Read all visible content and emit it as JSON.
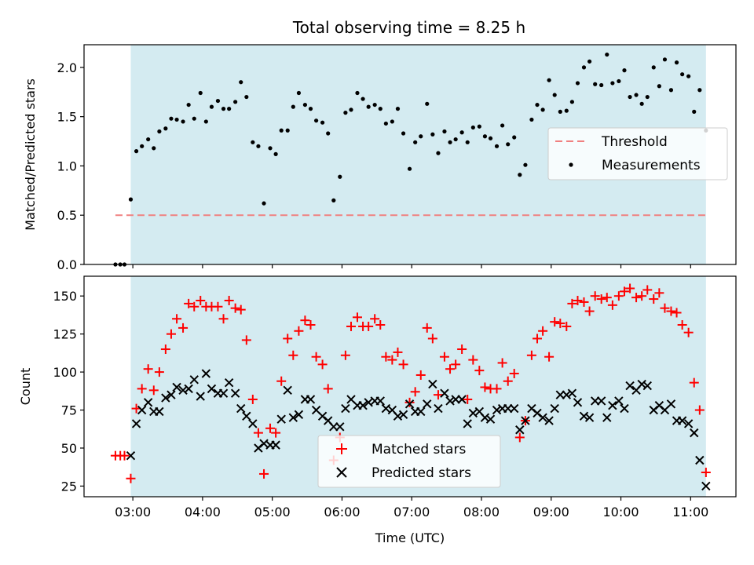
{
  "figure": {
    "title": "Total observing time = 8.25 h"
  },
  "chart_data": [
    {
      "type": "scatter",
      "panel": "top",
      "title": "Total observing time = 8.25 h",
      "xlabel": "",
      "ylabel": "Matched/Predicted stars",
      "xlim": [
        2.3,
        11.65
      ],
      "ylim": [
        0.0,
        2.23
      ],
      "yticks": [
        0.0,
        0.5,
        1.0,
        1.5,
        2.0
      ],
      "ytick_labels": [
        "0.0",
        "0.5",
        "1.0",
        "1.5",
        "2.0"
      ],
      "grid": false,
      "shaded_region": {
        "x0": 2.97,
        "x1": 11.22,
        "color": "#d4ebf1"
      },
      "threshold": {
        "name": "Threshold",
        "y": 0.5,
        "x0": 2.75,
        "x1": 11.22,
        "color": "#f08080",
        "style": "dashed"
      },
      "legend": {
        "position": "center-right",
        "entries": [
          "Threshold",
          "Measurements"
        ]
      },
      "series": [
        {
          "name": "Measurements",
          "color": "#000000",
          "marker": "dot",
          "x": [
            2.75,
            2.82,
            2.88,
            2.97,
            3.05,
            3.13,
            3.22,
            3.3,
            3.38,
            3.47,
            3.55,
            3.63,
            3.72,
            3.8,
            3.88,
            3.97,
            4.05,
            4.13,
            4.22,
            4.3,
            4.38,
            4.47,
            4.55,
            4.63,
            4.72,
            4.8,
            4.88,
            4.97,
            5.05,
            5.13,
            5.22,
            5.3,
            5.38,
            5.47,
            5.55,
            5.63,
            5.72,
            5.8,
            5.88,
            5.97,
            6.05,
            6.13,
            6.22,
            6.3,
            6.38,
            6.47,
            6.55,
            6.63,
            6.72,
            6.8,
            6.88,
            6.97,
            7.05,
            7.13,
            7.22,
            7.3,
            7.38,
            7.47,
            7.55,
            7.63,
            7.72,
            7.8,
            7.88,
            7.97,
            8.05,
            8.13,
            8.22,
            8.3,
            8.38,
            8.47,
            8.55,
            8.63,
            8.72,
            8.8,
            8.88,
            8.97,
            9.05,
            9.13,
            9.22,
            9.3,
            9.38,
            9.47,
            9.55,
            9.63,
            9.72,
            9.8,
            9.88,
            9.97,
            10.05,
            10.13,
            10.22,
            10.3,
            10.38,
            10.47,
            10.55,
            10.63,
            10.72,
            10.8,
            10.88,
            10.97,
            11.05,
            11.13,
            11.22
          ],
          "y": [
            0.0,
            0.0,
            0.0,
            0.66,
            1.15,
            1.2,
            1.27,
            1.18,
            1.35,
            1.38,
            1.48,
            1.47,
            1.45,
            1.62,
            1.48,
            1.74,
            1.45,
            1.6,
            1.66,
            1.58,
            1.58,
            1.65,
            1.85,
            1.7,
            1.24,
            1.2,
            0.62,
            1.18,
            1.12,
            1.36,
            1.36,
            1.6,
            1.74,
            1.62,
            1.58,
            1.46,
            1.44,
            1.33,
            0.65,
            0.89,
            1.54,
            1.57,
            1.74,
            1.68,
            1.6,
            1.62,
            1.58,
            1.43,
            1.45,
            1.58,
            1.33,
            0.97,
            1.24,
            1.3,
            1.63,
            1.32,
            1.13,
            1.35,
            1.24,
            1.27,
            1.34,
            1.24,
            1.39,
            1.4,
            1.3,
            1.28,
            1.2,
            1.41,
            1.22,
            1.29,
            0.91,
            1.01,
            1.47,
            1.62,
            1.57,
            1.87,
            1.72,
            1.55,
            1.56,
            1.65,
            1.84,
            2.0,
            2.06,
            1.83,
            1.82,
            2.13,
            1.84,
            1.86,
            1.97,
            1.7,
            1.72,
            1.63,
            1.7,
            2.0,
            1.81,
            2.08,
            1.77,
            2.05,
            1.93,
            1.91,
            1.55,
            1.77,
            1.36
          ]
        }
      ]
    },
    {
      "type": "scatter",
      "panel": "bottom",
      "xlabel": "Time (UTC)",
      "ylabel": "Count",
      "xlim": [
        2.3,
        11.65
      ],
      "ylim": [
        18,
        163
      ],
      "xticks": [
        3,
        4,
        5,
        6,
        7,
        8,
        9,
        10,
        11
      ],
      "xtick_labels": [
        "03:00",
        "04:00",
        "05:00",
        "06:00",
        "07:00",
        "08:00",
        "09:00",
        "10:00",
        "11:00"
      ],
      "yticks": [
        25,
        50,
        75,
        100,
        125,
        150
      ],
      "ytick_labels": [
        "25",
        "50",
        "75",
        "100",
        "125",
        "150"
      ],
      "grid": false,
      "shaded_region": {
        "x0": 2.97,
        "x1": 11.22,
        "color": "#d4ebf1"
      },
      "legend": {
        "position": "bottom-center",
        "entries": [
          "Matched stars",
          "Predicted stars"
        ]
      },
      "series": [
        {
          "name": "Matched stars",
          "color": "#ff0000",
          "marker": "plus",
          "x": [
            2.75,
            2.82,
            2.88,
            2.97,
            3.05,
            3.13,
            3.22,
            3.3,
            3.38,
            3.47,
            3.55,
            3.63,
            3.72,
            3.8,
            3.88,
            3.97,
            4.05,
            4.13,
            4.22,
            4.3,
            4.38,
            4.47,
            4.55,
            4.63,
            4.72,
            4.8,
            4.88,
            4.97,
            5.05,
            5.13,
            5.22,
            5.3,
            5.38,
            5.47,
            5.55,
            5.63,
            5.72,
            5.8,
            5.88,
            5.97,
            6.05,
            6.13,
            6.22,
            6.3,
            6.38,
            6.47,
            6.55,
            6.63,
            6.72,
            6.8,
            6.88,
            6.97,
            7.05,
            7.13,
            7.22,
            7.3,
            7.38,
            7.47,
            7.55,
            7.63,
            7.72,
            7.8,
            7.88,
            7.97,
            8.05,
            8.13,
            8.22,
            8.3,
            8.38,
            8.47,
            8.55,
            8.63,
            8.72,
            8.8,
            8.88,
            8.97,
            9.05,
            9.13,
            9.22,
            9.3,
            9.38,
            9.47,
            9.55,
            9.63,
            9.72,
            9.8,
            9.88,
            9.97,
            10.05,
            10.13,
            10.22,
            10.3,
            10.38,
            10.47,
            10.55,
            10.63,
            10.72,
            10.8,
            10.88,
            10.97,
            11.05,
            11.13,
            11.22
          ],
          "y": [
            45,
            45,
            45,
            30,
            76,
            89,
            102,
            88,
            100,
            115,
            125,
            135,
            129,
            145,
            143,
            147,
            143,
            143,
            143,
            135,
            147,
            142,
            141,
            121,
            82,
            60,
            33,
            63,
            60,
            94,
            122,
            111,
            127,
            134,
            131,
            110,
            105,
            89,
            42,
            57,
            111,
            130,
            136,
            130,
            130,
            135,
            131,
            110,
            108,
            113,
            105,
            80,
            87,
            98,
            129,
            122,
            85,
            110,
            102,
            105,
            115,
            82,
            108,
            101,
            90,
            89,
            89,
            106,
            94,
            99,
            57,
            68,
            111,
            122,
            127,
            110,
            133,
            132,
            130,
            145,
            147,
            146,
            140,
            150,
            148,
            149,
            144,
            150,
            153,
            155,
            149,
            150,
            154,
            148,
            152,
            142,
            140,
            139,
            131,
            126,
            93,
            75,
            34
          ]
        },
        {
          "name": "Predicted stars",
          "color": "#000000",
          "marker": "x",
          "x": [
            2.97,
            3.05,
            3.13,
            3.22,
            3.3,
            3.38,
            3.47,
            3.55,
            3.63,
            3.72,
            3.8,
            3.88,
            3.97,
            4.05,
            4.13,
            4.22,
            4.3,
            4.38,
            4.47,
            4.55,
            4.63,
            4.72,
            4.8,
            4.88,
            4.97,
            5.05,
            5.13,
            5.22,
            5.3,
            5.38,
            5.47,
            5.55,
            5.63,
            5.72,
            5.8,
            5.88,
            5.97,
            6.05,
            6.13,
            6.22,
            6.3,
            6.38,
            6.47,
            6.55,
            6.63,
            6.72,
            6.8,
            6.88,
            6.97,
            7.05,
            7.13,
            7.22,
            7.3,
            7.38,
            7.47,
            7.55,
            7.63,
            7.72,
            7.8,
            7.88,
            7.97,
            8.05,
            8.13,
            8.22,
            8.3,
            8.38,
            8.47,
            8.55,
            8.63,
            8.72,
            8.8,
            8.88,
            8.97,
            9.05,
            9.13,
            9.22,
            9.3,
            9.38,
            9.47,
            9.55,
            9.63,
            9.72,
            9.8,
            9.88,
            9.97,
            10.05,
            10.13,
            10.22,
            10.3,
            10.38,
            10.47,
            10.55,
            10.63,
            10.72,
            10.8,
            10.88,
            10.97,
            11.05,
            11.13,
            11.22
          ],
          "y": [
            45,
            66,
            75,
            80,
            74,
            74,
            83,
            85,
            90,
            88,
            89,
            95,
            84,
            99,
            89,
            86,
            86,
            93,
            86,
            76,
            71,
            66,
            50,
            53,
            52,
            52,
            69,
            88,
            70,
            72,
            82,
            82,
            75,
            71,
            68,
            64,
            64,
            76,
            82,
            78,
            78,
            80,
            81,
            81,
            76,
            75,
            71,
            72,
            79,
            74,
            74,
            79,
            92,
            76,
            86,
            81,
            82,
            82,
            66,
            73,
            74,
            70,
            69,
            75,
            76,
            76,
            76,
            62,
            68,
            76,
            73,
            70,
            68,
            76,
            85,
            85,
            86,
            80,
            71,
            70,
            81,
            81,
            70,
            78,
            81,
            76,
            91,
            88,
            92,
            91,
            75,
            78,
            75,
            79,
            68,
            68,
            66,
            60,
            42,
            25
          ]
        }
      ]
    }
  ]
}
